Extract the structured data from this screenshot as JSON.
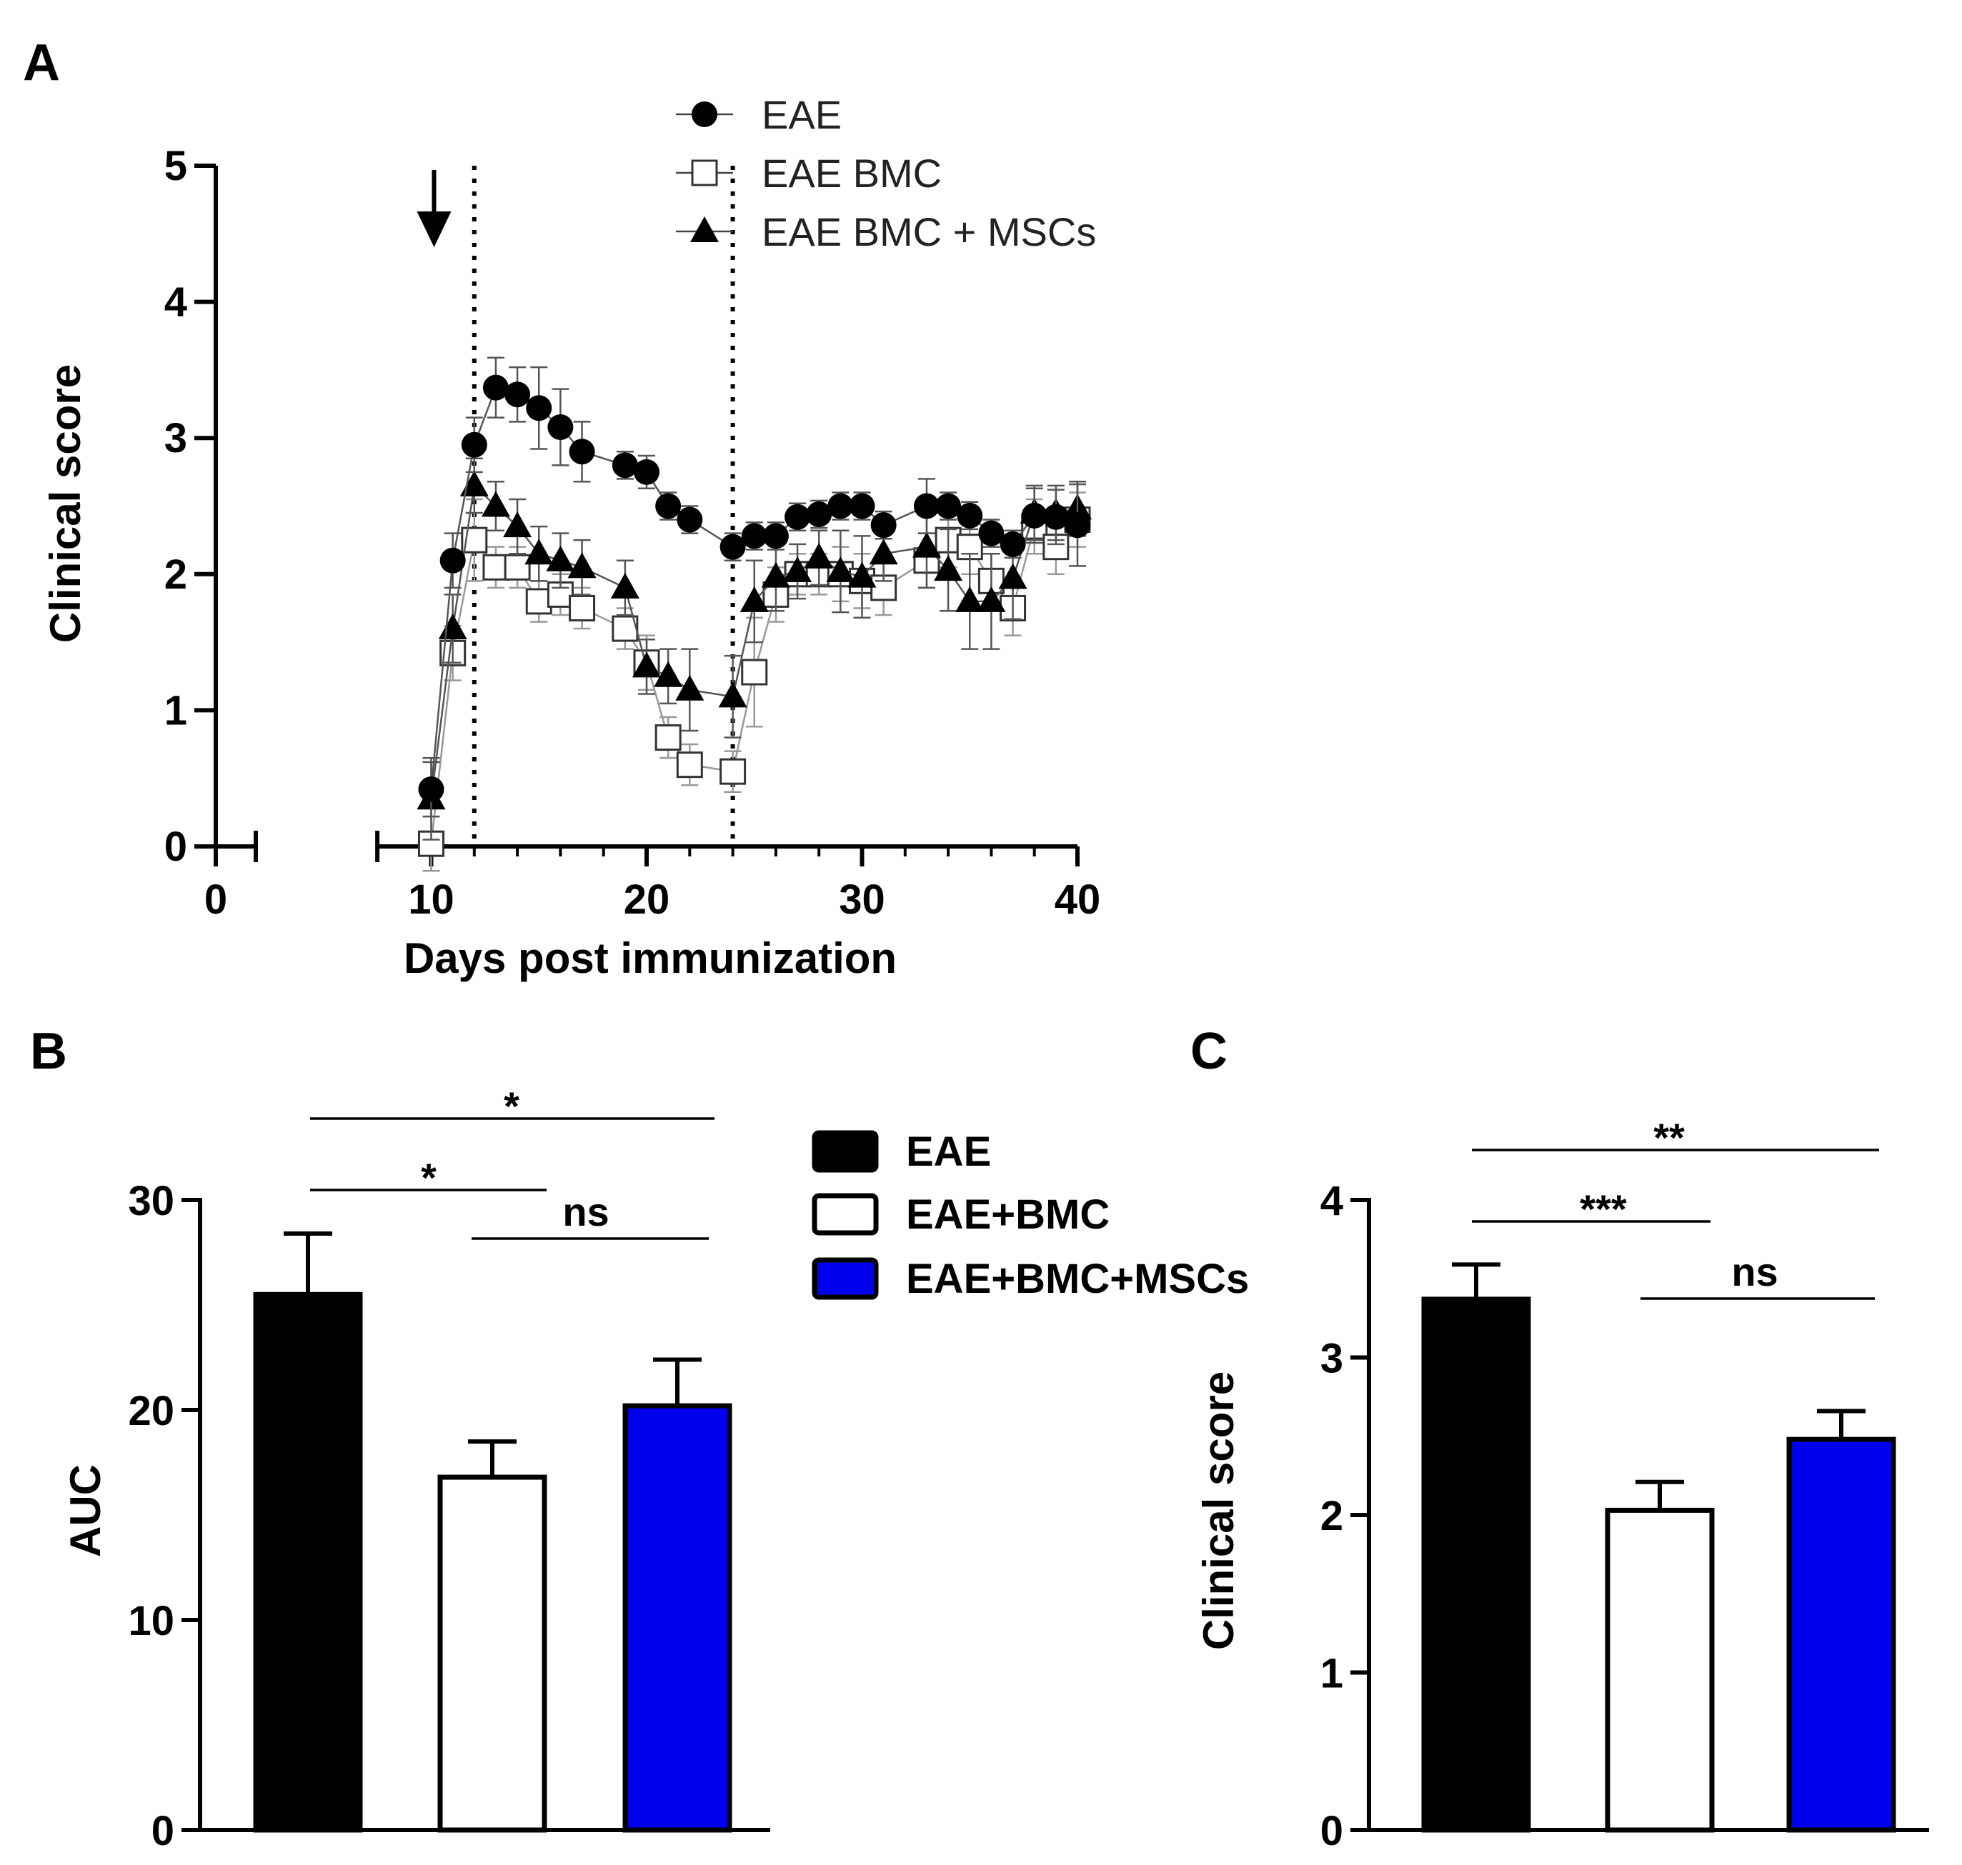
{
  "chart_data": [
    {
      "panel_label": "A",
      "type": "line",
      "xlabel": "Days post immunization",
      "ylabel": "Clinical score",
      "xlim": [
        0,
        40
      ],
      "ylim": [
        0,
        5
      ],
      "xticks": [
        "0",
        "10",
        "20",
        "30",
        "40"
      ],
      "yticks": [
        "0",
        "1",
        "2",
        "3",
        "4",
        "5"
      ],
      "vlines": [
        12,
        24
      ],
      "arrow_day": 10,
      "series": [
        {
          "name": "EAE",
          "marker": "circle-filled",
          "x": [
            10,
            11,
            12,
            13,
            14,
            15,
            16,
            17,
            19,
            20,
            21,
            22,
            24,
            25,
            26,
            27,
            28,
            29,
            30,
            31,
            33,
            34,
            35,
            36,
            37,
            38,
            39,
            40
          ],
          "y": [
            0.42,
            2.1,
            2.95,
            3.37,
            3.32,
            3.22,
            3.08,
            2.9,
            2.8,
            2.75,
            2.5,
            2.4,
            2.2,
            2.28,
            2.28,
            2.42,
            2.44,
            2.5,
            2.5,
            2.36,
            2.5,
            2.5,
            2.43,
            2.3,
            2.22,
            2.43,
            2.42,
            2.36
          ],
          "err": [
            0.2,
            0.2,
            0.2,
            0.22,
            0.2,
            0.3,
            0.28,
            0.22,
            0.1,
            0.12,
            0.1,
            0.1,
            0.1,
            0.1,
            0.1,
            0.1,
            0.1,
            0.1,
            0.1,
            0.1,
            0.2,
            0.1,
            0.1,
            0.1,
            0.1,
            0.2,
            0.2,
            0.3
          ]
        },
        {
          "name": "EAE BMC",
          "marker": "square-open",
          "x": [
            10,
            11,
            12,
            13,
            14,
            15,
            16,
            17,
            19,
            20,
            21,
            22,
            24,
            25,
            26,
            27,
            28,
            29,
            30,
            31,
            33,
            34,
            35,
            36,
            37,
            38,
            39,
            40
          ],
          "y": [
            0.02,
            1.42,
            2.25,
            2.05,
            2.05,
            1.8,
            1.85,
            1.75,
            1.6,
            1.35,
            0.8,
            0.6,
            0.55,
            1.28,
            1.85,
            2.0,
            2.0,
            2.0,
            1.95,
            1.9,
            2.1,
            2.25,
            2.2,
            1.95,
            1.75,
            2.35,
            2.2,
            2.4
          ],
          "err": [
            0.2,
            0.2,
            0.3,
            0.15,
            0.15,
            0.15,
            0.15,
            0.15,
            0.15,
            0.2,
            0.15,
            0.15,
            0.15,
            0.4,
            0.2,
            0.15,
            0.15,
            0.2,
            0.2,
            0.2,
            0.2,
            0.2,
            0.2,
            0.2,
            0.2,
            0.2,
            0.2,
            0.2
          ]
        },
        {
          "name": "EAE BMC + MSCs",
          "marker": "triangle-filled",
          "x": [
            10,
            11,
            12,
            13,
            14,
            15,
            16,
            17,
            19,
            20,
            21,
            22,
            24,
            25,
            26,
            27,
            28,
            29,
            30,
            31,
            33,
            34,
            35,
            36,
            37,
            38,
            39,
            40
          ],
          "y": [
            0.35,
            1.6,
            2.65,
            2.5,
            2.35,
            2.15,
            2.1,
            2.05,
            1.9,
            1.32,
            1.25,
            1.15,
            1.1,
            1.8,
            1.98,
            2.02,
            2.12,
            2.02,
            1.98,
            2.15,
            2.2,
            2.03,
            1.8,
            1.8,
            1.97,
            2.45,
            2.45,
            2.48
          ],
          "err": [
            0.3,
            0.25,
            0.2,
            0.18,
            0.2,
            0.2,
            0.2,
            0.2,
            0.2,
            0.2,
            0.2,
            0.3,
            0.3,
            0.3,
            0.25,
            0.2,
            0.2,
            0.3,
            0.3,
            0.2,
            0.3,
            0.3,
            0.35,
            0.35,
            0.3,
            0.2,
            0.2,
            0.2
          ]
        }
      ]
    },
    {
      "panel_label": "B",
      "type": "bar",
      "ylabel": "AUC",
      "ylim": [
        0,
        30
      ],
      "yticks": [
        "0",
        "10",
        "20",
        "30"
      ],
      "categories": [
        "EAE",
        "EAE+BMC",
        "EAE+BMC+MSCs"
      ],
      "colors": [
        "#000000",
        "#ffffff",
        "#0000ee"
      ],
      "values": [
        25.5,
        16.8,
        20.2
      ],
      "err": [
        2.9,
        1.7,
        2.2
      ],
      "significance": [
        {
          "from": 0,
          "to": 2,
          "label": "*"
        },
        {
          "from": 0,
          "to": 1,
          "label": "*"
        },
        {
          "from": 1,
          "to": 2,
          "label": "ns"
        }
      ]
    },
    {
      "panel_label": "C",
      "type": "bar",
      "ylabel": "Clinical score",
      "ylim": [
        0,
        4
      ],
      "yticks": [
        "0",
        "1",
        "2",
        "3",
        "4"
      ],
      "categories": [
        "EAE",
        "EAE+BMC",
        "EAE+BMC+MSCs"
      ],
      "colors": [
        "#000000",
        "#ffffff",
        "#0000ee"
      ],
      "values": [
        3.37,
        2.03,
        2.48
      ],
      "err": [
        0.22,
        0.18,
        0.18
      ],
      "significance": [
        {
          "from": 0,
          "to": 2,
          "label": "**"
        },
        {
          "from": 0,
          "to": 1,
          "label": "***"
        },
        {
          "from": 1,
          "to": 2,
          "label": "ns"
        }
      ]
    }
  ]
}
